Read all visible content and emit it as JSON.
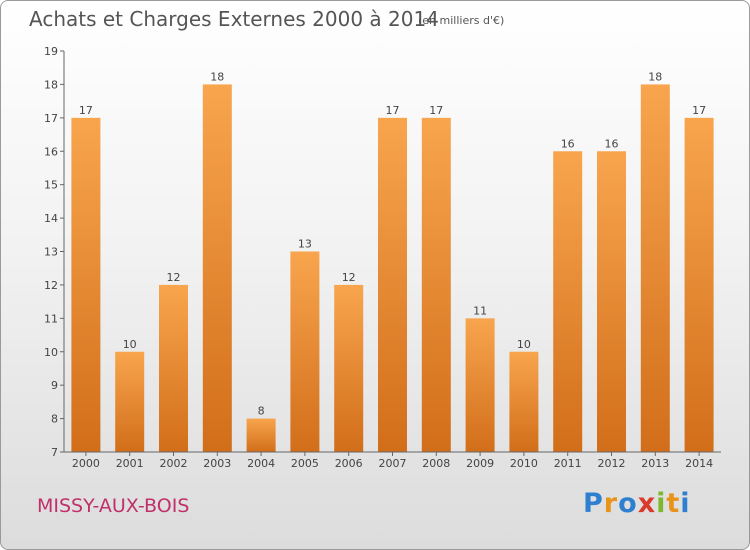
{
  "header": {
    "title": "Achats et Charges Externes 2000 à 2014",
    "subtitle": "(en milliers d'€)"
  },
  "footer": {
    "commune": "MISSY-AUX-BOIS",
    "logo_text": "Proxiti"
  },
  "colors": {
    "bar_light": "#f8a54e",
    "bar_dark": "#d26e1a",
    "commune_text": "#c0306a",
    "logo_letters": [
      "#2f7fd0",
      "#e8941c",
      "#2f7fd0",
      "#d93a2b",
      "#7cb92f",
      "#e8941c",
      "#2f7fd0"
    ]
  },
  "chart_data": {
    "type": "bar",
    "categories": [
      "2000",
      "2001",
      "2002",
      "2003",
      "2004",
      "2005",
      "2006",
      "2007",
      "2008",
      "2009",
      "2010",
      "2011",
      "2012",
      "2013",
      "2014"
    ],
    "values": [
      17,
      10,
      12,
      18,
      8,
      13,
      12,
      17,
      17,
      11,
      10,
      16,
      16,
      18,
      17
    ],
    "title": "Achats et Charges Externes 2000 à 2014",
    "xlabel": "",
    "ylabel": "",
    "ylim": [
      7,
      19
    ],
    "yticks": [
      7,
      8,
      9,
      10,
      11,
      12,
      13,
      14,
      15,
      16,
      17,
      18,
      19
    ],
    "grid": false,
    "legend": "none"
  }
}
